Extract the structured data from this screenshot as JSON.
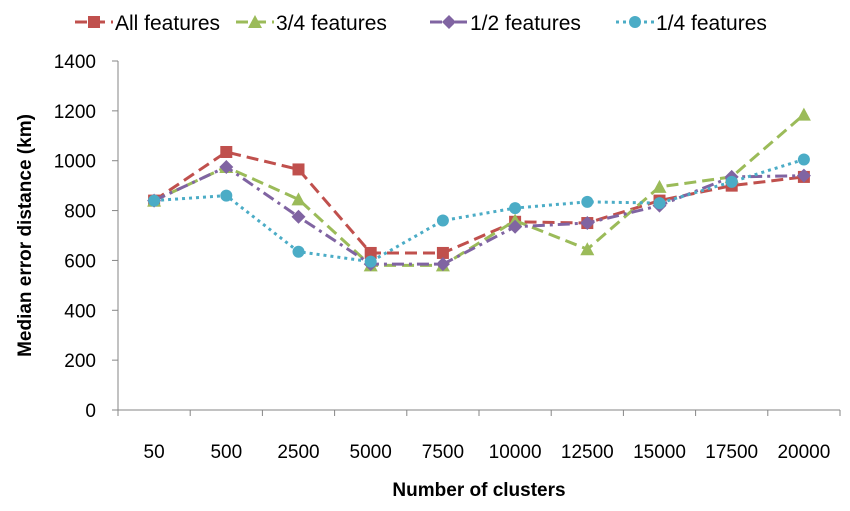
{
  "chart_data": {
    "type": "line",
    "title": "",
    "xlabel": "Number of clusters",
    "ylabel": "Median error distance (km)",
    "categories": [
      "50",
      "500",
      "2500",
      "5000",
      "7500",
      "10000",
      "12500",
      "15000",
      "17500",
      "20000"
    ],
    "yticks": [
      "0",
      "200",
      "400",
      "600",
      "800",
      "1000",
      "1200",
      "1400"
    ],
    "ylim": [
      0,
      1400
    ],
    "grid": false,
    "legend_position": "top",
    "series": [
      {
        "name": "All features",
        "color": "#c0504d",
        "marker": "square",
        "dash": "dashed",
        "values": [
          840,
          1035,
          965,
          630,
          630,
          755,
          750,
          840,
          900,
          935
        ]
      },
      {
        "name": "3/4 features",
        "color": "#9bbb59",
        "marker": "triangle",
        "dash": "dashed",
        "values": [
          840,
          975,
          845,
          580,
          580,
          760,
          645,
          895,
          935,
          1185
        ]
      },
      {
        "name": "1/2 features",
        "color": "#8064a2",
        "marker": "diamond",
        "dash": "dash-dot",
        "values": [
          840,
          975,
          775,
          585,
          585,
          735,
          750,
          820,
          935,
          940
        ]
      },
      {
        "name": "1/4 features",
        "color": "#4bacc6",
        "marker": "circle",
        "dash": "dotted",
        "values": [
          840,
          860,
          635,
          595,
          760,
          810,
          835,
          830,
          915,
          1005
        ]
      }
    ]
  }
}
